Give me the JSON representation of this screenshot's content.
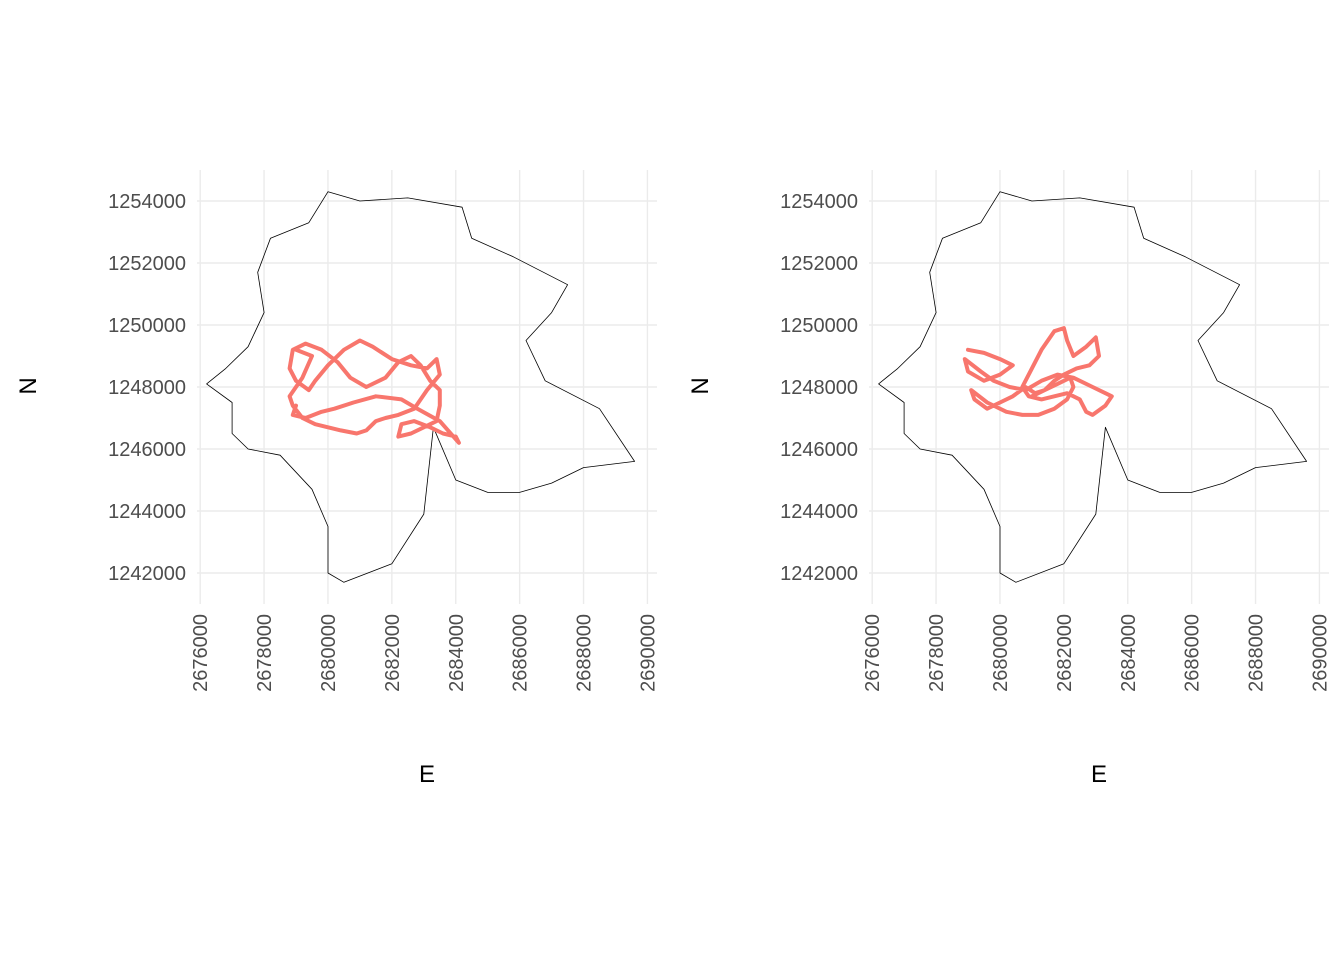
{
  "chart_data": [
    {
      "type": "line",
      "title": "",
      "xlabel": "E",
      "ylabel": "N",
      "xlim": [
        2675900,
        2690300
      ],
      "ylim": [
        1241000,
        1255000
      ],
      "x_ticks": [
        2676000,
        2678000,
        2680000,
        2682000,
        2684000,
        2686000,
        2688000,
        2690000
      ],
      "y_ticks": [
        1242000,
        1244000,
        1246000,
        1248000,
        1250000,
        1252000,
        1254000
      ],
      "x_tick_labels": [
        "2676000",
        "2678000",
        "2680000",
        "2682000",
        "2684000",
        "2686000",
        "2688000",
        "2690000"
      ],
      "y_tick_labels": [
        "1242000",
        "1244000",
        "1246000",
        "1248000",
        "1250000",
        "1252000",
        "1254000"
      ],
      "grid": true,
      "legend": "none",
      "colors": {
        "boundary": "#000000",
        "track": "#f8766d",
        "grid": "#ebebeb"
      },
      "boundary": [
        [
          2680000,
          1254300
        ],
        [
          2681000,
          1254000
        ],
        [
          2682500,
          1254100
        ],
        [
          2684200,
          1253800
        ],
        [
          2684500,
          1252800
        ],
        [
          2685800,
          1252200
        ],
        [
          2687500,
          1251300
        ],
        [
          2687000,
          1250400
        ],
        [
          2686200,
          1249500
        ],
        [
          2686800,
          1248200
        ],
        [
          2688500,
          1247300
        ],
        [
          2689600,
          1245600
        ],
        [
          2688000,
          1245400
        ],
        [
          2687000,
          1244900
        ],
        [
          2686000,
          1244600
        ],
        [
          2685000,
          1244600
        ],
        [
          2684000,
          1245000
        ],
        [
          2683300,
          1246700
        ],
        [
          2683000,
          1243900
        ],
        [
          2682000,
          1242300
        ],
        [
          2680500,
          1241700
        ],
        [
          2680000,
          1242000
        ],
        [
          2680000,
          1243500
        ],
        [
          2679500,
          1244700
        ],
        [
          2678500,
          1245800
        ],
        [
          2677500,
          1246000
        ],
        [
          2677000,
          1246500
        ],
        [
          2677000,
          1247500
        ],
        [
          2676200,
          1248100
        ],
        [
          2676800,
          1248600
        ],
        [
          2677500,
          1249300
        ],
        [
          2678000,
          1250400
        ],
        [
          2677800,
          1251700
        ],
        [
          2678200,
          1252800
        ],
        [
          2679400,
          1253300
        ],
        [
          2680000,
          1254300
        ]
      ],
      "series": [
        {
          "x": [
            2679000,
            2679500,
            2679200,
            2678800,
            2678900,
            2679200,
            2679600,
            2680000,
            2680400,
            2680900,
            2681200,
            2681500,
            2681800,
            2682200,
            2682700,
            2683100,
            2683500,
            2683400,
            2683100,
            2682600,
            2682000,
            2681400,
            2681000,
            2680500,
            2680000,
            2679600,
            2679400,
            2679000,
            2678800,
            2678900,
            2679300,
            2679800,
            2680300,
            2680700,
            2681200,
            2681800,
            2682200,
            2682600,
            2682900,
            2683200,
            2683500,
            2683500,
            2683400,
            2683000,
            2682600,
            2682200,
            2682300,
            2682700,
            2683200,
            2683600,
            2684000,
            2684100,
            2683500,
            2682800,
            2682300,
            2681500,
            2680800,
            2680200,
            2679800,
            2679300,
            2678900,
            2679000
          ],
          "y": [
            1249200,
            1249000,
            1248300,
            1247700,
            1247400,
            1247000,
            1246800,
            1246700,
            1246600,
            1246500,
            1246600,
            1246900,
            1247000,
            1247100,
            1247300,
            1247900,
            1248400,
            1248900,
            1248600,
            1248700,
            1248900,
            1249300,
            1249500,
            1249200,
            1248700,
            1248200,
            1247900,
            1248200,
            1248600,
            1249200,
            1249400,
            1249200,
            1248800,
            1248300,
            1248000,
            1248300,
            1248800,
            1249000,
            1248700,
            1248200,
            1247900,
            1247400,
            1246900,
            1246700,
            1246500,
            1246400,
            1246800,
            1246900,
            1246700,
            1246500,
            1246400,
            1246200,
            1246900,
            1247300,
            1247600,
            1247700,
            1247500,
            1247300,
            1247200,
            1247000,
            1247100,
            1247400
          ]
        }
      ]
    },
    {
      "type": "line",
      "title": "",
      "xlabel": "E",
      "ylabel": "N",
      "xlim": [
        2675900,
        2690300
      ],
      "ylim": [
        1241000,
        1255000
      ],
      "x_ticks": [
        2676000,
        2678000,
        2680000,
        2682000,
        2684000,
        2686000,
        2688000,
        2690000
      ],
      "y_ticks": [
        1242000,
        1244000,
        1246000,
        1248000,
        1250000,
        1252000,
        1254000
      ],
      "x_tick_labels": [
        "2676000",
        "2678000",
        "2680000",
        "2682000",
        "2684000",
        "2686000",
        "2688000",
        "2690000"
      ],
      "y_tick_labels": [
        "1242000",
        "1244000",
        "1246000",
        "1248000",
        "1250000",
        "1252000",
        "1254000"
      ],
      "grid": true,
      "legend": "none",
      "colors": {
        "boundary": "#000000",
        "track": "#f8766d",
        "grid": "#ebebeb"
      },
      "boundary": [
        [
          2680000,
          1254300
        ],
        [
          2681000,
          1254000
        ],
        [
          2682500,
          1254100
        ],
        [
          2684200,
          1253800
        ],
        [
          2684500,
          1252800
        ],
        [
          2685800,
          1252200
        ],
        [
          2687500,
          1251300
        ],
        [
          2687000,
          1250400
        ],
        [
          2686200,
          1249500
        ],
        [
          2686800,
          1248200
        ],
        [
          2688500,
          1247300
        ],
        [
          2689600,
          1245600
        ],
        [
          2688000,
          1245400
        ],
        [
          2687000,
          1244900
        ],
        [
          2686000,
          1244600
        ],
        [
          2685000,
          1244600
        ],
        [
          2684000,
          1245000
        ],
        [
          2683300,
          1246700
        ],
        [
          2683000,
          1243900
        ],
        [
          2682000,
          1242300
        ],
        [
          2680500,
          1241700
        ],
        [
          2680000,
          1242000
        ],
        [
          2680000,
          1243500
        ],
        [
          2679500,
          1244700
        ],
        [
          2678500,
          1245800
        ],
        [
          2677500,
          1246000
        ],
        [
          2677000,
          1246500
        ],
        [
          2677000,
          1247500
        ],
        [
          2676200,
          1248100
        ],
        [
          2676800,
          1248600
        ],
        [
          2677500,
          1249300
        ],
        [
          2678000,
          1250400
        ],
        [
          2677800,
          1251700
        ],
        [
          2678200,
          1252800
        ],
        [
          2679400,
          1253300
        ],
        [
          2680000,
          1254300
        ]
      ],
      "series": [
        {
          "x": [
            2679000,
            2679500,
            2680000,
            2680400,
            2680000,
            2679500,
            2679000,
            2678900,
            2679400,
            2679800,
            2680300,
            2680800,
            2681300,
            2681800,
            2682300,
            2682900,
            2683300,
            2683500,
            2683300,
            2682900,
            2682700,
            2682500,
            2682100,
            2681700,
            2681300,
            2680900,
            2680700,
            2681000,
            2681300,
            2681700,
            2682000,
            2682100,
            2682300,
            2682700,
            2683000,
            2683100,
            2682800,
            2682400,
            2682000,
            2681700,
            2681400,
            2681100,
            2680800,
            2680400,
            2680000,
            2679600,
            2679200,
            2679100,
            2679600,
            2680200,
            2680700,
            2681200,
            2681700,
            2682100,
            2682300,
            2682200,
            2681800,
            2681400,
            2681000
          ],
          "y": [
            1249200,
            1249100,
            1248900,
            1248700,
            1248400,
            1248200,
            1248500,
            1248900,
            1248500,
            1248200,
            1248000,
            1247900,
            1248200,
            1248400,
            1248300,
            1248000,
            1247800,
            1247700,
            1247400,
            1247100,
            1247200,
            1247600,
            1247800,
            1247700,
            1247600,
            1247700,
            1248000,
            1248600,
            1249200,
            1249800,
            1249900,
            1249500,
            1249000,
            1249300,
            1249600,
            1249000,
            1248700,
            1248600,
            1248400,
            1248200,
            1247900,
            1247800,
            1248000,
            1247700,
            1247500,
            1247300,
            1247600,
            1247900,
            1247500,
            1247200,
            1247100,
            1247100,
            1247300,
            1247600,
            1248000,
            1248300,
            1248100,
            1247900,
            1247700
          ]
        }
      ]
    }
  ]
}
